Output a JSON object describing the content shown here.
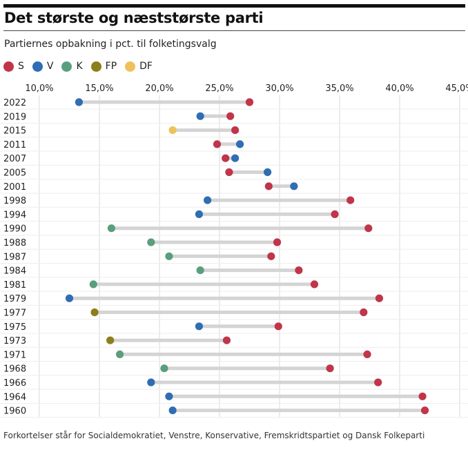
{
  "title": "Det største og næststørste parti",
  "subtitle": "Partiernes opbakning i pct. til folketingsvalg",
  "footnote": "Forkortelser står for Socialdemokratiet, Venstre, Konservative, Fremskridtspartiet og Dansk Folkeparti",
  "colors": {
    "S": "#c0354a",
    "V": "#2f6db5",
    "K": "#5a9e7e",
    "FP": "#8c7f1c",
    "DF": "#eec25a"
  },
  "legend": [
    {
      "key": "S",
      "label": "S"
    },
    {
      "key": "V",
      "label": "V"
    },
    {
      "key": "K",
      "label": "K"
    },
    {
      "key": "FP",
      "label": "FP"
    },
    {
      "key": "DF",
      "label": "DF"
    }
  ],
  "chart_data": {
    "type": "dot",
    "x_ticks": [
      10,
      15,
      20,
      25,
      30,
      35,
      40,
      45
    ],
    "x_tick_labels": [
      "10,0%",
      "15,0%",
      "20,0%",
      "25,0%",
      "30,0%",
      "35,0%",
      "40,0%",
      "45,0%"
    ],
    "xlim": [
      10,
      45
    ],
    "rows": [
      {
        "year": "2022",
        "points": [
          {
            "party": "V",
            "value": 13.3
          },
          {
            "party": "S",
            "value": 27.5
          }
        ]
      },
      {
        "year": "2019",
        "points": [
          {
            "party": "V",
            "value": 23.4
          },
          {
            "party": "S",
            "value": 25.9
          }
        ]
      },
      {
        "year": "2015",
        "points": [
          {
            "party": "DF",
            "value": 21.1
          },
          {
            "party": "S",
            "value": 26.3
          }
        ]
      },
      {
        "year": "2011",
        "points": [
          {
            "party": "S",
            "value": 24.8
          },
          {
            "party": "V",
            "value": 26.7
          }
        ]
      },
      {
        "year": "2007",
        "points": [
          {
            "party": "S",
            "value": 25.5
          },
          {
            "party": "V",
            "value": 26.3
          }
        ]
      },
      {
        "year": "2005",
        "points": [
          {
            "party": "S",
            "value": 25.8
          },
          {
            "party": "V",
            "value": 29.0
          }
        ]
      },
      {
        "year": "2001",
        "points": [
          {
            "party": "S",
            "value": 29.1
          },
          {
            "party": "V",
            "value": 31.2
          }
        ]
      },
      {
        "year": "1998",
        "points": [
          {
            "party": "V",
            "value": 24.0
          },
          {
            "party": "S",
            "value": 35.9
          }
        ]
      },
      {
        "year": "1994",
        "points": [
          {
            "party": "V",
            "value": 23.3
          },
          {
            "party": "S",
            "value": 34.6
          }
        ]
      },
      {
        "year": "1990",
        "points": [
          {
            "party": "K",
            "value": 16.0
          },
          {
            "party": "S",
            "value": 37.4
          }
        ]
      },
      {
        "year": "1988",
        "points": [
          {
            "party": "K",
            "value": 19.3
          },
          {
            "party": "S",
            "value": 29.8
          }
        ]
      },
      {
        "year": "1987",
        "points": [
          {
            "party": "K",
            "value": 20.8
          },
          {
            "party": "S",
            "value": 29.3
          }
        ]
      },
      {
        "year": "1984",
        "points": [
          {
            "party": "K",
            "value": 23.4
          },
          {
            "party": "S",
            "value": 31.6
          }
        ]
      },
      {
        "year": "1981",
        "points": [
          {
            "party": "K",
            "value": 14.5
          },
          {
            "party": "S",
            "value": 32.9
          }
        ]
      },
      {
        "year": "1979",
        "points": [
          {
            "party": "V",
            "value": 12.5
          },
          {
            "party": "S",
            "value": 38.3
          }
        ]
      },
      {
        "year": "1977",
        "points": [
          {
            "party": "FP",
            "value": 14.6
          },
          {
            "party": "S",
            "value": 37.0
          }
        ]
      },
      {
        "year": "1975",
        "points": [
          {
            "party": "V",
            "value": 23.3
          },
          {
            "party": "S",
            "value": 29.9
          }
        ]
      },
      {
        "year": "1973",
        "points": [
          {
            "party": "FP",
            "value": 15.9
          },
          {
            "party": "S",
            "value": 25.6
          }
        ]
      },
      {
        "year": "1971",
        "points": [
          {
            "party": "K",
            "value": 16.7
          },
          {
            "party": "S",
            "value": 37.3
          }
        ]
      },
      {
        "year": "1968",
        "points": [
          {
            "party": "K",
            "value": 20.4
          },
          {
            "party": "S",
            "value": 34.2
          }
        ]
      },
      {
        "year": "1966",
        "points": [
          {
            "party": "V",
            "value": 19.3
          },
          {
            "party": "S",
            "value": 38.2
          }
        ]
      },
      {
        "year": "1964",
        "points": [
          {
            "party": "V",
            "value": 20.8
          },
          {
            "party": "S",
            "value": 41.9
          }
        ]
      },
      {
        "year": "1960",
        "points": [
          {
            "party": "V",
            "value": 21.1
          },
          {
            "party": "S",
            "value": 42.1
          }
        ]
      }
    ]
  }
}
